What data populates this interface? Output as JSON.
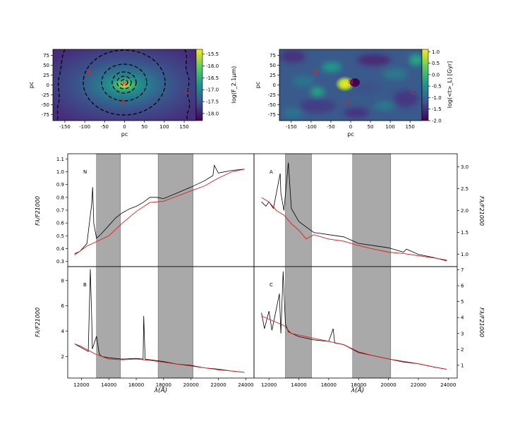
{
  "maps": [
    {
      "id": "flux",
      "xlabel": "pc",
      "ylabel": "pc",
      "xticks": [
        -150,
        -100,
        -50,
        0,
        50,
        100,
        150
      ],
      "yticks": [
        75,
        50,
        25,
        0,
        -25,
        -50,
        -75
      ],
      "xlim": [
        -180,
        180
      ],
      "ylim": [
        -90,
        90
      ],
      "colorbar_label": "log(F_2.1μm)",
      "colorbar_ticks": [
        "-15.5",
        "-16.0",
        "-16.5",
        "-17.0",
        "-17.5",
        "-18.0"
      ],
      "colorbar_range": [
        -18.3,
        -15.3
      ],
      "colors": [
        "#440154",
        "#3b528b",
        "#21918c",
        "#5ec962",
        "#fde725"
      ],
      "markers": [
        {
          "label": "N",
          "x": 0,
          "y": 3
        },
        {
          "label": "A",
          "x": -5,
          "y": -42
        },
        {
          "label": "B",
          "x": -88,
          "y": 30
        },
        {
          "label": "C",
          "x": 157,
          "y": -18
        }
      ]
    },
    {
      "id": "age",
      "xlabel": "pc",
      "ylabel": "pc",
      "xticks": [
        -150,
        -100,
        -50,
        0,
        50,
        100,
        150
      ],
      "yticks": [
        75,
        50,
        25,
        0,
        -25,
        -50,
        -75
      ],
      "xlim": [
        -180,
        180
      ],
      "ylim": [
        -90,
        90
      ],
      "colorbar_label": "log(<t>_L) [Gyr]",
      "colorbar_ticks": [
        "1.0",
        "0.5",
        "0.0",
        "-0.5",
        "-1.0",
        "-1.5",
        "-2.0"
      ],
      "colorbar_range": [
        -2.0,
        1.1
      ],
      "markers": [
        {
          "label": "N",
          "x": 0,
          "y": 8
        },
        {
          "label": "A",
          "x": -8,
          "y": -42
        },
        {
          "label": "B",
          "x": -88,
          "y": 30
        },
        {
          "label": "C",
          "x": 157,
          "y": -18
        }
      ]
    }
  ],
  "chart_data": {
    "type": "line",
    "xlabel": "λ(Å)",
    "ylabel": "Fλ/F21000",
    "xticks": [
      12000,
      14000,
      16000,
      18000,
      20000,
      22000,
      24000
    ],
    "xlim": [
      11000,
      24600
    ],
    "shaded_bands": [
      [
        13100,
        14850
      ],
      [
        17600,
        20150
      ]
    ],
    "panels": [
      {
        "label": "N",
        "ylim": [
          0.26,
          1.14
        ],
        "yticks": [
          "0.3",
          "0.4",
          "0.5",
          "0.6",
          "0.7",
          "0.8",
          "0.9",
          "1.0",
          "1.1"
        ],
        "observed": [
          [
            11500,
            0.36
          ],
          [
            11900,
            0.38
          ],
          [
            12400,
            0.44
          ],
          [
            12750,
            0.75
          ],
          [
            12820,
            0.88
          ],
          [
            12900,
            0.6
          ],
          [
            13100,
            0.48
          ],
          [
            13400,
            0.51
          ],
          [
            14000,
            0.58
          ],
          [
            14500,
            0.64
          ],
          [
            15000,
            0.68
          ],
          [
            15500,
            0.71
          ],
          [
            16000,
            0.73
          ],
          [
            16500,
            0.76
          ],
          [
            17000,
            0.8
          ],
          [
            17500,
            0.8
          ],
          [
            18000,
            0.79
          ],
          [
            20000,
            0.88
          ],
          [
            21000,
            0.93
          ],
          [
            21600,
            0.97
          ],
          [
            21700,
            1.05
          ],
          [
            22000,
            0.99
          ],
          [
            23000,
            1.01
          ],
          [
            23900,
            1.02
          ]
        ],
        "model": [
          [
            11500,
            0.35
          ],
          [
            12400,
            0.42
          ],
          [
            13000,
            0.45
          ],
          [
            14000,
            0.5
          ],
          [
            15000,
            0.6
          ],
          [
            16000,
            0.69
          ],
          [
            17000,
            0.76
          ],
          [
            18000,
            0.77
          ],
          [
            19000,
            0.81
          ],
          [
            20000,
            0.85
          ],
          [
            21000,
            0.89
          ],
          [
            22000,
            0.95
          ],
          [
            23000,
            1.0
          ],
          [
            23900,
            1.02
          ]
        ]
      },
      {
        "label": "A",
        "ylim": [
          0.72,
          3.3
        ],
        "yticks": [
          "1.0",
          "1.5",
          "2.0",
          "2.5",
          "3.0"
        ],
        "observed": [
          [
            11500,
            2.2
          ],
          [
            11800,
            2.1
          ],
          [
            12000,
            2.2
          ],
          [
            12300,
            2.05
          ],
          [
            12750,
            2.85
          ],
          [
            12800,
            2.4
          ],
          [
            13000,
            2.0
          ],
          [
            13300,
            3.1
          ],
          [
            13500,
            2.05
          ],
          [
            14000,
            1.75
          ],
          [
            15000,
            1.5
          ],
          [
            16000,
            1.45
          ],
          [
            17000,
            1.4
          ],
          [
            18000,
            1.25
          ],
          [
            19000,
            1.2
          ],
          [
            20000,
            1.15
          ],
          [
            21000,
            1.05
          ],
          [
            21200,
            1.12
          ],
          [
            22000,
            1.0
          ],
          [
            23000,
            0.93
          ],
          [
            23900,
            0.85
          ]
        ],
        "model": [
          [
            11500,
            2.3
          ],
          [
            12000,
            2.2
          ],
          [
            12500,
            2.0
          ],
          [
            13000,
            1.9
          ],
          [
            13500,
            1.7
          ],
          [
            14000,
            1.55
          ],
          [
            14500,
            1.35
          ],
          [
            15000,
            1.45
          ],
          [
            16000,
            1.35
          ],
          [
            17000,
            1.3
          ],
          [
            18000,
            1.2
          ],
          [
            19000,
            1.12
          ],
          [
            20000,
            1.05
          ],
          [
            21000,
            1.02
          ],
          [
            22000,
            0.97
          ],
          [
            23000,
            0.92
          ],
          [
            23900,
            0.87
          ]
        ]
      },
      {
        "label": "B",
        "ylim": [
          0.3,
          9.1
        ],
        "yticks": [
          "2",
          "4",
          "6",
          "8"
        ],
        "observed": [
          [
            11500,
            3.0
          ],
          [
            12000,
            2.7
          ],
          [
            12500,
            2.4
          ],
          [
            12650,
            8.9
          ],
          [
            12750,
            5.0
          ],
          [
            12800,
            2.6
          ],
          [
            13100,
            3.6
          ],
          [
            13300,
            2.2
          ],
          [
            13500,
            2.0
          ],
          [
            14000,
            1.9
          ],
          [
            15000,
            1.8
          ],
          [
            16000,
            1.85
          ],
          [
            16500,
            1.8
          ],
          [
            16550,
            5.2
          ],
          [
            16650,
            1.8
          ],
          [
            17000,
            1.75
          ],
          [
            18000,
            1.6
          ],
          [
            19000,
            1.4
          ],
          [
            20000,
            1.3
          ],
          [
            21000,
            1.1
          ],
          [
            22000,
            1.0
          ],
          [
            23000,
            0.85
          ],
          [
            23900,
            0.75
          ]
        ],
        "model": [
          [
            11500,
            3.0
          ],
          [
            12000,
            2.8
          ],
          [
            12500,
            2.5
          ],
          [
            13000,
            2.2
          ],
          [
            13500,
            2.0
          ],
          [
            14000,
            1.8
          ],
          [
            15000,
            1.75
          ],
          [
            16000,
            1.8
          ],
          [
            17000,
            1.7
          ],
          [
            18000,
            1.55
          ],
          [
            19000,
            1.4
          ],
          [
            20000,
            1.25
          ],
          [
            21000,
            1.1
          ],
          [
            22000,
            0.95
          ],
          [
            23000,
            0.85
          ],
          [
            23900,
            0.75
          ]
        ]
      },
      {
        "label": "C",
        "ylim": [
          0.2,
          7.2
        ],
        "yticks": [
          "1",
          "2",
          "3",
          "4",
          "5",
          "6",
          "7"
        ],
        "observed": [
          [
            11500,
            4.3
          ],
          [
            11700,
            3.3
          ],
          [
            12000,
            4.4
          ],
          [
            12200,
            3.2
          ],
          [
            12400,
            4.1
          ],
          [
            12700,
            5.5
          ],
          [
            12800,
            3.0
          ],
          [
            12950,
            6.9
          ],
          [
            13100,
            3.6
          ],
          [
            13300,
            3.1
          ],
          [
            14000,
            2.8
          ],
          [
            15000,
            2.6
          ],
          [
            16000,
            2.5
          ],
          [
            16300,
            3.3
          ],
          [
            16400,
            2.4
          ],
          [
            17000,
            2.3
          ],
          [
            18000,
            1.8
          ],
          [
            19000,
            1.6
          ],
          [
            20000,
            1.4
          ],
          [
            21000,
            1.2
          ],
          [
            22000,
            1.1
          ],
          [
            23000,
            0.9
          ],
          [
            23900,
            0.75
          ]
        ],
        "model": [
          [
            11500,
            4.1
          ],
          [
            12000,
            3.9
          ],
          [
            12500,
            3.7
          ],
          [
            13000,
            3.5
          ],
          [
            13500,
            3.0
          ],
          [
            14000,
            2.9
          ],
          [
            15000,
            2.7
          ],
          [
            16000,
            2.5
          ],
          [
            17000,
            2.3
          ],
          [
            18000,
            1.85
          ],
          [
            19000,
            1.6
          ],
          [
            20000,
            1.4
          ],
          [
            21000,
            1.25
          ],
          [
            22000,
            1.1
          ],
          [
            23000,
            0.9
          ],
          [
            23900,
            0.75
          ]
        ]
      }
    ]
  }
}
